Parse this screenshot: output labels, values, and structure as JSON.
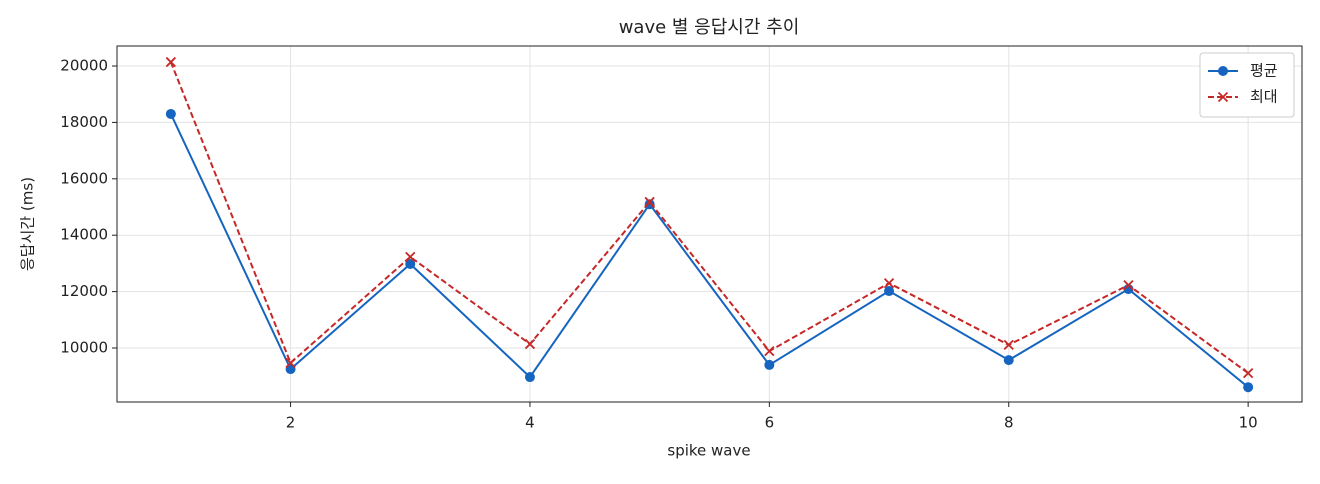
{
  "chart_data": {
    "type": "line",
    "title": "wave 별 응답시간 추이",
    "xlabel": "spike wave",
    "ylabel": "응답시간 (ms)",
    "x": [
      1,
      2,
      3,
      4,
      5,
      6,
      7,
      8,
      9,
      10
    ],
    "series": [
      {
        "name": "평균",
        "color": "#1565c0",
        "marker": "circle",
        "dash": "solid",
        "values": [
          18300,
          9250,
          12980,
          8970,
          15100,
          9400,
          12020,
          9570,
          12090,
          8610
        ]
      },
      {
        "name": "최대",
        "color": "#c62828",
        "marker": "x",
        "dash": "dashed",
        "values": [
          20140,
          9470,
          13230,
          10140,
          15180,
          9890,
          12300,
          10110,
          12230,
          9110
        ]
      }
    ],
    "xlim": [
      0.55,
      10.45
    ],
    "xticks": [
      2,
      4,
      6,
      8,
      10
    ],
    "ylim": [
      8085,
      20710
    ],
    "yticks": [
      10000,
      12000,
      14000,
      16000,
      18000,
      20000
    ],
    "grid": true,
    "legend": "upper right"
  }
}
